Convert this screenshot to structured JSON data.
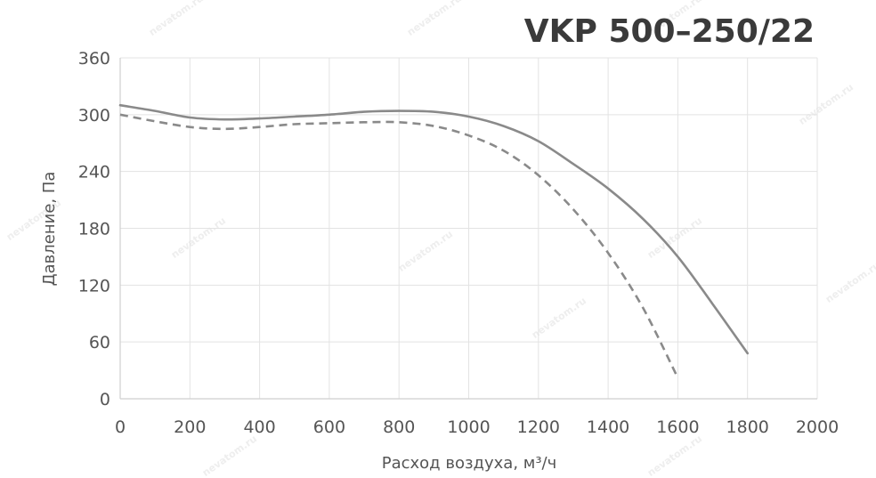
{
  "chart_data": {
    "type": "line",
    "title": "VKP 500–250/22",
    "xlabel": "Расход воздуха, м³/ч",
    "ylabel": "Давление, Па",
    "xlim": [
      0,
      2000
    ],
    "ylim": [
      0,
      360
    ],
    "x_ticks": [
      0,
      200,
      400,
      600,
      800,
      1000,
      1200,
      1400,
      1600,
      1800,
      2000
    ],
    "y_ticks": [
      0,
      60,
      120,
      180,
      240,
      300,
      360
    ],
    "grid": true,
    "series": [
      {
        "style": "solid",
        "color": "#8a8a8a",
        "x": [
          0,
          100,
          200,
          300,
          400,
          500,
          600,
          700,
          800,
          900,
          1000,
          1100,
          1200,
          1300,
          1400,
          1500,
          1600,
          1700,
          1800
        ],
        "y": [
          310,
          304,
          297,
          295,
          296,
          298,
          300,
          303,
          304,
          303,
          298,
          288,
          272,
          248,
          222,
          190,
          150,
          100,
          48
        ]
      },
      {
        "style": "dashed",
        "color": "#8a8a8a",
        "x": [
          0,
          100,
          200,
          300,
          400,
          500,
          600,
          700,
          800,
          900,
          1000,
          1100,
          1200,
          1300,
          1400,
          1500,
          1600
        ],
        "y": [
          300,
          293,
          287,
          285,
          287,
          290,
          291,
          292,
          292,
          288,
          278,
          262,
          236,
          200,
          154,
          96,
          22
        ]
      }
    ]
  },
  "watermark": "nevatom.ru"
}
